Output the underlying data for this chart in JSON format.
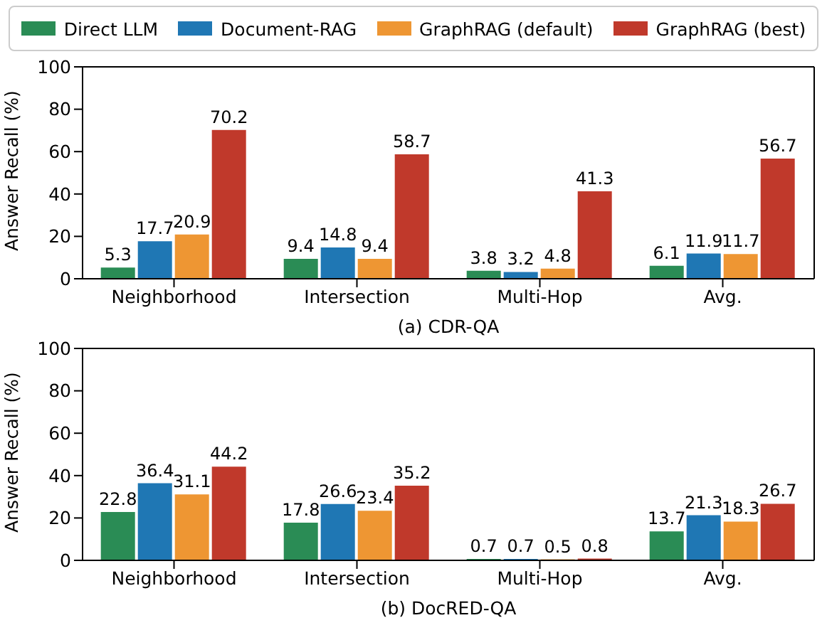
{
  "chart_data": [
    {
      "type": "bar",
      "xlabel": "(a) CDR-QA",
      "ylabel": "Answer Recall (%)",
      "categories": [
        "Neighborhood",
        "Intersection",
        "Multi-Hop",
        "Avg."
      ],
      "series": [
        {
          "name": "Direct LLM",
          "color": "#2a8c55",
          "values": [
            5.3,
            9.4,
            3.8,
            6.1
          ]
        },
        {
          "name": "Document-RAG",
          "color": "#1f77b4",
          "values": [
            17.7,
            14.8,
            3.2,
            11.9
          ]
        },
        {
          "name": "GraphRAG (default)",
          "color": "#ee9633",
          "values": [
            20.9,
            9.4,
            4.8,
            11.7
          ]
        },
        {
          "name": "GraphRAG (best)",
          "color": "#c0392b",
          "values": [
            70.2,
            58.7,
            41.3,
            56.7
          ]
        }
      ],
      "ylim": [
        0,
        100
      ],
      "yticks": [
        0,
        20,
        40,
        60,
        80,
        100
      ],
      "data_labels": true,
      "legend": "top"
    },
    {
      "type": "bar",
      "xlabel": "(b) DocRED-QA",
      "ylabel": "Answer Recall (%)",
      "categories": [
        "Neighborhood",
        "Intersection",
        "Multi-Hop",
        "Avg."
      ],
      "series": [
        {
          "color": "#2a8c55",
          "values": [
            22.8,
            17.8,
            0.7,
            13.7
          ]
        },
        {
          "color": "#1f77b4",
          "values": [
            36.4,
            26.6,
            0.7,
            21.3
          ]
        },
        {
          "color": "#ee9633",
          "values": [
            31.1,
            23.4,
            0.5,
            18.3
          ]
        },
        {
          "color": "#c0392b",
          "values": [
            44.2,
            35.2,
            0.8,
            26.7
          ]
        }
      ],
      "ylim": [
        0,
        100
      ],
      "yticks": [
        0,
        20,
        40,
        60,
        80,
        100
      ],
      "data_labels": true,
      "legend": false
    }
  ]
}
